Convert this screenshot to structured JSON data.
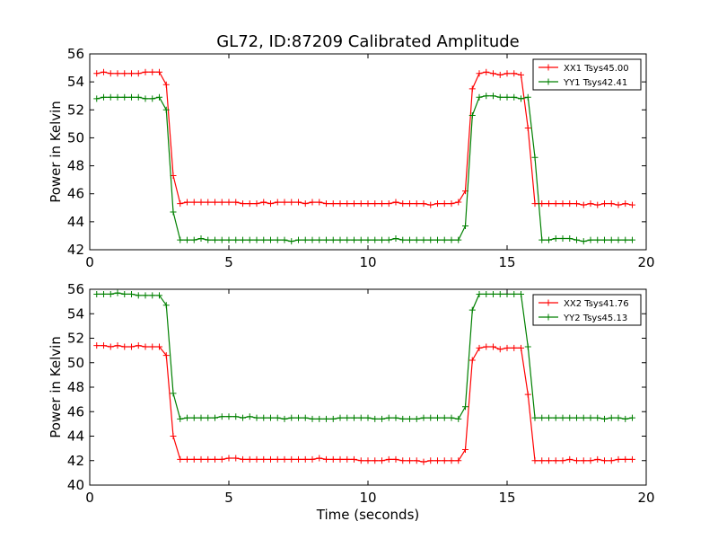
{
  "figure": {
    "title": "GL72, ID:87209 Calibrated Amplitude",
    "xlabel": "Time (seconds)"
  },
  "colors": {
    "xx": "#ff0000",
    "yy": "#008000",
    "axes": "#000000",
    "background": "#ffffff"
  },
  "chart_data": [
    {
      "type": "line",
      "title": "GL72, ID:87209 Calibrated Amplitude",
      "xlabel": "",
      "ylabel": "Power in Kelvin",
      "xlim": [
        0,
        20
      ],
      "ylim": [
        42,
        56
      ],
      "x_ticks": [
        0,
        5,
        10,
        15,
        20
      ],
      "y_ticks": [
        42,
        44,
        46,
        48,
        50,
        52,
        54,
        56
      ],
      "grid": false,
      "legend_position": "top-right",
      "marker": "+",
      "series": [
        {
          "name": "XX1 Tsys45.00",
          "color": "#ff0000",
          "x": [
            0.25,
            0.5,
            0.75,
            1.0,
            1.25,
            1.5,
            1.75,
            2.0,
            2.25,
            2.5,
            2.75,
            3.0,
            3.25,
            3.5,
            3.75,
            4.0,
            4.25,
            4.5,
            4.75,
            5.0,
            5.25,
            5.5,
            5.75,
            6.0,
            6.25,
            6.5,
            6.75,
            7.0,
            7.25,
            7.5,
            7.75,
            8.0,
            8.25,
            8.5,
            8.75,
            9.0,
            9.25,
            9.5,
            9.75,
            10.0,
            10.25,
            10.5,
            10.75,
            11.0,
            11.25,
            11.5,
            11.75,
            12.0,
            12.25,
            12.5,
            12.75,
            13.0,
            13.25,
            13.5,
            13.75,
            14.0,
            14.25,
            14.5,
            14.75,
            15.0,
            15.25,
            15.5,
            15.75,
            16.0,
            16.25,
            16.5,
            16.75,
            17.0,
            17.25,
            17.5,
            17.75,
            18.0,
            18.25,
            18.5,
            18.75,
            19.0,
            19.25,
            19.5
          ],
          "y": [
            54.6,
            54.7,
            54.6,
            54.6,
            54.6,
            54.6,
            54.6,
            54.7,
            54.7,
            54.7,
            53.8,
            47.3,
            45.3,
            45.4,
            45.4,
            45.4,
            45.4,
            45.4,
            45.4,
            45.4,
            45.4,
            45.3,
            45.3,
            45.3,
            45.4,
            45.3,
            45.4,
            45.4,
            45.4,
            45.4,
            45.3,
            45.4,
            45.4,
            45.3,
            45.3,
            45.3,
            45.3,
            45.3,
            45.3,
            45.3,
            45.3,
            45.3,
            45.3,
            45.4,
            45.3,
            45.3,
            45.3,
            45.3,
            45.2,
            45.3,
            45.3,
            45.3,
            45.4,
            46.2,
            53.5,
            54.6,
            54.7,
            54.6,
            54.5,
            54.6,
            54.6,
            54.5,
            50.7,
            45.3,
            45.3,
            45.3,
            45.3,
            45.3,
            45.3,
            45.3,
            45.2,
            45.3,
            45.2,
            45.3,
            45.3,
            45.2,
            45.3,
            45.2
          ]
        },
        {
          "name": "YY1 Tsys42.41",
          "color": "#008000",
          "x": [
            0.25,
            0.5,
            0.75,
            1.0,
            1.25,
            1.5,
            1.75,
            2.0,
            2.25,
            2.5,
            2.75,
            3.0,
            3.25,
            3.5,
            3.75,
            4.0,
            4.25,
            4.5,
            4.75,
            5.0,
            5.25,
            5.5,
            5.75,
            6.0,
            6.25,
            6.5,
            6.75,
            7.0,
            7.25,
            7.5,
            7.75,
            8.0,
            8.25,
            8.5,
            8.75,
            9.0,
            9.25,
            9.5,
            9.75,
            10.0,
            10.25,
            10.5,
            10.75,
            11.0,
            11.25,
            11.5,
            11.75,
            12.0,
            12.25,
            12.5,
            12.75,
            13.0,
            13.25,
            13.5,
            13.75,
            14.0,
            14.25,
            14.5,
            14.75,
            15.0,
            15.25,
            15.5,
            15.75,
            16.0,
            16.25,
            16.5,
            16.75,
            17.0,
            17.25,
            17.5,
            17.75,
            18.0,
            18.25,
            18.5,
            18.75,
            19.0,
            19.25,
            19.5
          ],
          "y": [
            52.8,
            52.9,
            52.9,
            52.9,
            52.9,
            52.9,
            52.9,
            52.8,
            52.8,
            52.9,
            52.0,
            44.7,
            42.7,
            42.7,
            42.7,
            42.8,
            42.7,
            42.7,
            42.7,
            42.7,
            42.7,
            42.7,
            42.7,
            42.7,
            42.7,
            42.7,
            42.7,
            42.7,
            42.6,
            42.7,
            42.7,
            42.7,
            42.7,
            42.7,
            42.7,
            42.7,
            42.7,
            42.7,
            42.7,
            42.7,
            42.7,
            42.7,
            42.7,
            42.8,
            42.7,
            42.7,
            42.7,
            42.7,
            42.7,
            42.7,
            42.7,
            42.7,
            42.7,
            43.7,
            51.6,
            52.9,
            53.0,
            53.0,
            52.9,
            52.9,
            52.9,
            52.8,
            52.9,
            48.6,
            42.7,
            42.7,
            42.8,
            42.8,
            42.8,
            42.7,
            42.6,
            42.7,
            42.7,
            42.7,
            42.7,
            42.7,
            42.7,
            42.7
          ]
        }
      ]
    },
    {
      "type": "line",
      "title": "",
      "xlabel": "Time (seconds)",
      "ylabel": "Power in Kelvin",
      "xlim": [
        0,
        20
      ],
      "ylim": [
        40,
        56
      ],
      "x_ticks": [
        0,
        5,
        10,
        15,
        20
      ],
      "y_ticks": [
        40,
        42,
        44,
        46,
        48,
        50,
        52,
        54,
        56
      ],
      "grid": false,
      "legend_position": "top-right",
      "marker": "+",
      "series": [
        {
          "name": "XX2 Tsys41.76",
          "color": "#ff0000",
          "x": [
            0.25,
            0.5,
            0.75,
            1.0,
            1.25,
            1.5,
            1.75,
            2.0,
            2.25,
            2.5,
            2.75,
            3.0,
            3.25,
            3.5,
            3.75,
            4.0,
            4.25,
            4.5,
            4.75,
            5.0,
            5.25,
            5.5,
            5.75,
            6.0,
            6.25,
            6.5,
            6.75,
            7.0,
            7.25,
            7.5,
            7.75,
            8.0,
            8.25,
            8.5,
            8.75,
            9.0,
            9.25,
            9.5,
            9.75,
            10.0,
            10.25,
            10.5,
            10.75,
            11.0,
            11.25,
            11.5,
            11.75,
            12.0,
            12.25,
            12.5,
            12.75,
            13.0,
            13.25,
            13.5,
            13.75,
            14.0,
            14.25,
            14.5,
            14.75,
            15.0,
            15.25,
            15.5,
            15.75,
            16.0,
            16.25,
            16.5,
            16.75,
            17.0,
            17.25,
            17.5,
            17.75,
            18.0,
            18.25,
            18.5,
            18.75,
            19.0,
            19.25,
            19.5
          ],
          "y": [
            51.4,
            51.4,
            51.3,
            51.4,
            51.3,
            51.3,
            51.4,
            51.3,
            51.3,
            51.3,
            50.6,
            44.0,
            42.1,
            42.1,
            42.1,
            42.1,
            42.1,
            42.1,
            42.1,
            42.2,
            42.2,
            42.1,
            42.1,
            42.1,
            42.1,
            42.1,
            42.1,
            42.1,
            42.1,
            42.1,
            42.1,
            42.1,
            42.2,
            42.1,
            42.1,
            42.1,
            42.1,
            42.1,
            42.0,
            42.0,
            42.0,
            42.0,
            42.1,
            42.1,
            42.0,
            42.0,
            42.0,
            41.9,
            42.0,
            42.0,
            42.0,
            42.0,
            42.0,
            42.9,
            50.2,
            51.2,
            51.3,
            51.3,
            51.1,
            51.2,
            51.2,
            51.2,
            47.4,
            42.0,
            42.0,
            42.0,
            42.0,
            42.0,
            42.1,
            42.0,
            42.0,
            42.0,
            42.1,
            42.0,
            42.0,
            42.1,
            42.1,
            42.1
          ]
        },
        {
          "name": "YY2 Tsys45.13",
          "color": "#008000",
          "x": [
            0.25,
            0.5,
            0.75,
            1.0,
            1.25,
            1.5,
            1.75,
            2.0,
            2.25,
            2.5,
            2.75,
            3.0,
            3.25,
            3.5,
            3.75,
            4.0,
            4.25,
            4.5,
            4.75,
            5.0,
            5.25,
            5.5,
            5.75,
            6.0,
            6.25,
            6.5,
            6.75,
            7.0,
            7.25,
            7.5,
            7.75,
            8.0,
            8.25,
            8.5,
            8.75,
            9.0,
            9.25,
            9.5,
            9.75,
            10.0,
            10.25,
            10.5,
            10.75,
            11.0,
            11.25,
            11.5,
            11.75,
            12.0,
            12.25,
            12.5,
            12.75,
            13.0,
            13.25,
            13.5,
            13.75,
            14.0,
            14.25,
            14.5,
            14.75,
            15.0,
            15.25,
            15.5,
            15.75,
            16.0,
            16.25,
            16.5,
            16.75,
            17.0,
            17.25,
            17.5,
            17.75,
            18.0,
            18.25,
            18.5,
            18.75,
            19.0,
            19.25,
            19.5
          ],
          "y": [
            55.6,
            55.6,
            55.6,
            55.7,
            55.6,
            55.6,
            55.5,
            55.5,
            55.5,
            55.5,
            54.7,
            47.5,
            45.4,
            45.5,
            45.5,
            45.5,
            45.5,
            45.5,
            45.6,
            45.6,
            45.6,
            45.5,
            45.6,
            45.5,
            45.5,
            45.5,
            45.5,
            45.4,
            45.5,
            45.5,
            45.5,
            45.4,
            45.4,
            45.4,
            45.4,
            45.5,
            45.5,
            45.5,
            45.5,
            45.5,
            45.4,
            45.4,
            45.5,
            45.5,
            45.4,
            45.4,
            45.4,
            45.5,
            45.5,
            45.5,
            45.5,
            45.5,
            45.4,
            46.4,
            54.3,
            55.6,
            55.6,
            55.6,
            55.6,
            55.6,
            55.6,
            55.6,
            51.3,
            45.5,
            45.5,
            45.5,
            45.5,
            45.5,
            45.5,
            45.5,
            45.5,
            45.5,
            45.5,
            45.4,
            45.5,
            45.5,
            45.4,
            45.5
          ]
        }
      ]
    }
  ]
}
